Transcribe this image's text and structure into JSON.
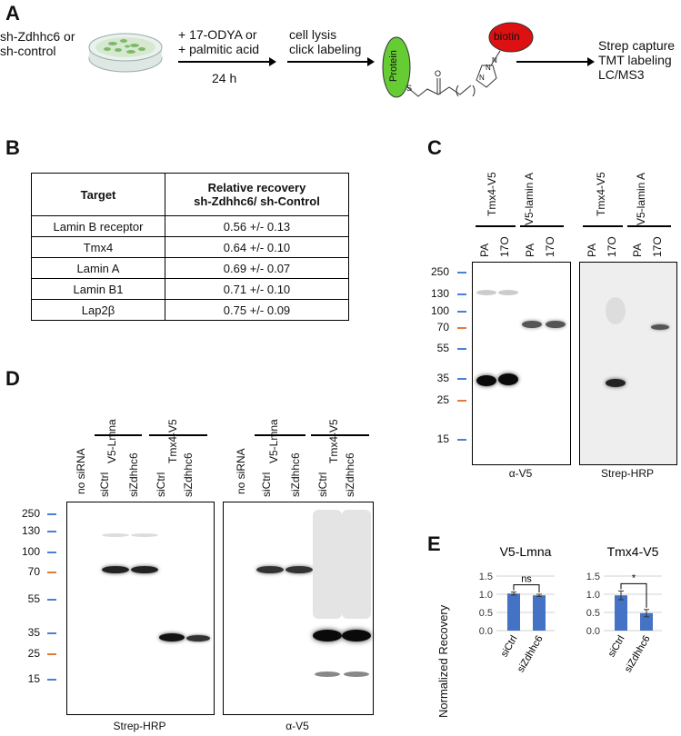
{
  "panelA": {
    "label": "A",
    "condition_line1": "sh-Zdhhc6 or",
    "condition_line2": "sh-control",
    "treat_line1": "+ 17-ODYA or",
    "treat_line2": "+ palmitic acid",
    "time": "24 h",
    "step2_line1": "cell lysis",
    "step2_line2": "click labeling",
    "protein_label": "Protein",
    "biotin_label": "biotin",
    "linker_s": "S",
    "linker_o": "O",
    "triazole_n1": "N",
    "triazole_n2": "N",
    "triazole_n3": "N",
    "step3_line1": "Strep capture",
    "step3_line2": "TMT labeling",
    "step3_line3": "LC/MS3"
  },
  "panelB": {
    "label": "B",
    "headers": [
      "Target",
      "Relative recovery\nsh-Zdhhc6/ sh-Control"
    ],
    "rows": [
      {
        "target": "Lamin B receptor",
        "value": "0.56 +/- 0.13"
      },
      {
        "target": "Tmx4",
        "value": "0.64 +/- 0.10"
      },
      {
        "target": "Lamin A",
        "value": "0.69 +/- 0.07"
      },
      {
        "target": "Lamin B1",
        "value": "0.71 +/- 0.10"
      },
      {
        "target": "Lap2β",
        "value": "0.75 +/- 0.09"
      }
    ]
  },
  "panelC": {
    "label": "C",
    "groups": [
      "Tmx4-V5",
      "V5-lamin A",
      "Tmx4-V5",
      "V5-lamin A"
    ],
    "lanes": [
      "PA",
      "17O",
      "PA",
      "17O",
      "PA",
      "17O",
      "PA",
      "17O"
    ],
    "mw": [
      "250",
      "130",
      "100",
      "70",
      "55",
      "35",
      "25",
      "15"
    ],
    "caption_left": "α-V5",
    "caption_right": "Strep-HRP"
  },
  "panelD": {
    "label": "D",
    "lanes": [
      "no siRNA",
      "siCtrl",
      "siZdhhc6",
      "siCtrl",
      "siZdhhc6"
    ],
    "groups": [
      "V5-Lmna",
      "Tmx4-V5"
    ],
    "mw": [
      "250",
      "130",
      "100",
      "70",
      "55",
      "35",
      "25",
      "15"
    ],
    "caption_left": "Strep-HRP",
    "caption_right": "α-V5"
  },
  "panelE": {
    "label": "E",
    "ylabel": "Normalized  Recovery",
    "charts": [
      {
        "title": "V5-Lmna",
        "sig": "ns"
      },
      {
        "title": "Tmx4-V5",
        "sig": "*"
      }
    ]
  },
  "colors": {
    "bar_blue": "#4472c4",
    "marker_blue": "#4a7fd6",
    "marker_orange": "#e07b39",
    "protein_green": "#66cc33",
    "biotin_red": "#dd1111",
    "blot_bg": "#f2f2f2"
  },
  "chart_data": [
    {
      "type": "bar",
      "title": "V5-Lmna",
      "categories": [
        "siCtrl",
        "siZdhhc6"
      ],
      "values": [
        1.02,
        0.97
      ],
      "errors": [
        0.04,
        0.03
      ],
      "ylabel": "Normalized  Recovery",
      "ylim": [
        0,
        1.5
      ],
      "yticks": [
        "0.0",
        "0.5",
        "1.0",
        "1.5"
      ],
      "grid": true,
      "annotation": "ns"
    },
    {
      "type": "bar",
      "title": "Tmx4-V5",
      "categories": [
        "siCtrl",
        "siZdhhc6"
      ],
      "values": [
        0.97,
        0.48
      ],
      "errors": [
        0.12,
        0.1
      ],
      "ylabel": "Normalized  Recovery",
      "ylim": [
        0,
        1.5
      ],
      "yticks": [
        "0.0",
        "0.5",
        "1.0",
        "1.5"
      ],
      "grid": true,
      "annotation": "*"
    }
  ]
}
